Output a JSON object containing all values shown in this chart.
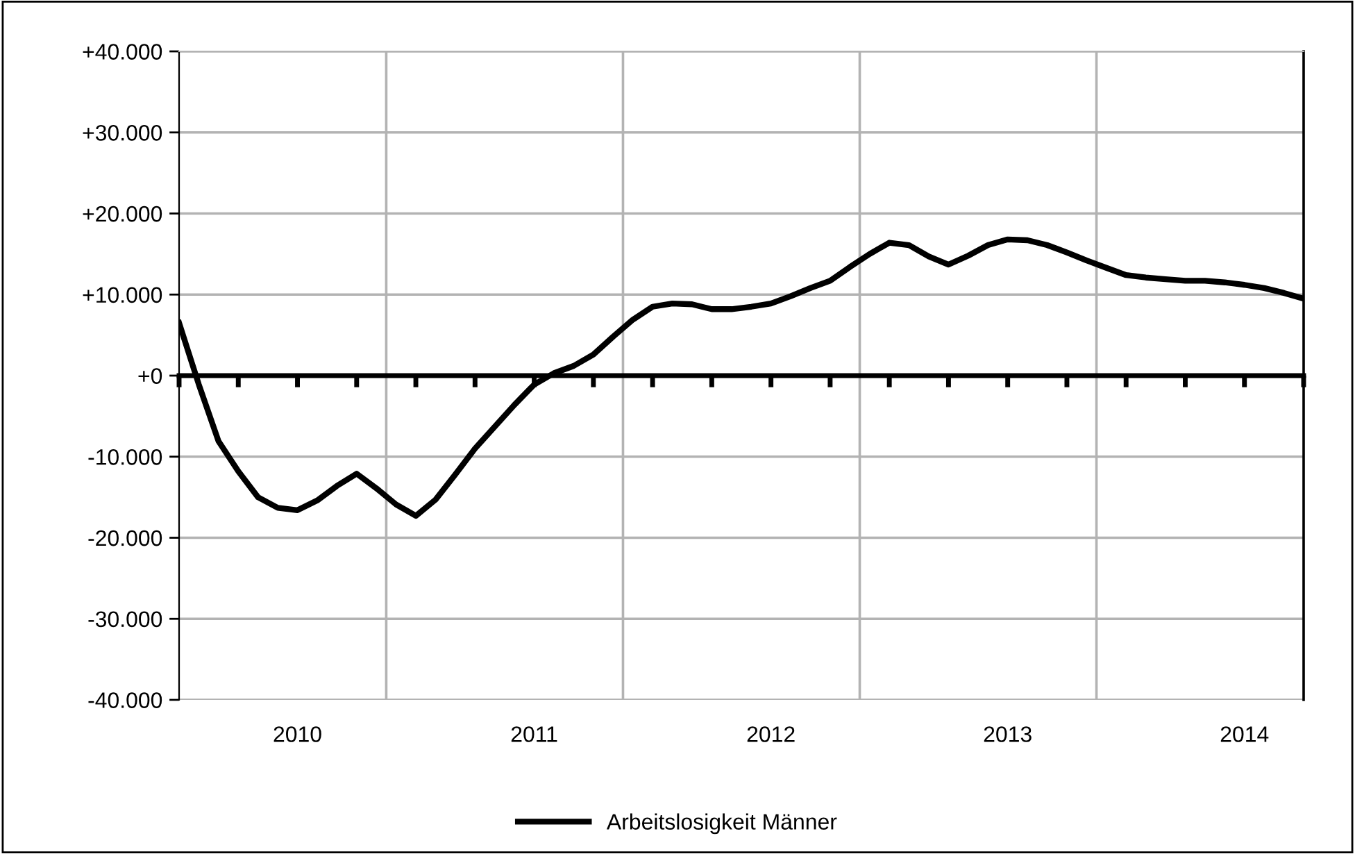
{
  "chart_data": {
    "type": "line",
    "categories": [
      null,
      null,
      null,
      null,
      null,
      null,
      "2010",
      null,
      null,
      null,
      null,
      null,
      null,
      null,
      null,
      null,
      null,
      null,
      "2011",
      null,
      null,
      null,
      null,
      null,
      null,
      null,
      null,
      null,
      null,
      null,
      "2012",
      null,
      null,
      null,
      null,
      null,
      null,
      null,
      null,
      null,
      null,
      null,
      "2013",
      null,
      null,
      null,
      null,
      null,
      null,
      null,
      null,
      null,
      null,
      null,
      "2014",
      null,
      null,
      null
    ],
    "series": [
      {
        "name": "Arbeitslosigkeit Männer",
        "color": "#000000",
        "values": [
          6500,
          -1100,
          -8100,
          -11800,
          -15000,
          -16300,
          -16600,
          -15400,
          -13600,
          -12100,
          -13900,
          -15900,
          -17300,
          -15300,
          -12200,
          -9000,
          -6300,
          -3600,
          -1100,
          300,
          1200,
          2600,
          4800,
          6900,
          8500,
          8900,
          8800,
          8200,
          8200,
          8500,
          8900,
          9800,
          10800,
          11700,
          13400,
          15000,
          16400,
          16100,
          14700,
          13700,
          14800,
          16100,
          16800,
          16700,
          16100,
          15200,
          14200,
          13300,
          12400,
          12100,
          11900,
          11700,
          11700,
          11500,
          11200,
          10800,
          10200,
          9500
        ]
      }
    ],
    "ylim": [
      -40000,
      40000
    ],
    "yticks": [
      {
        "value": -40000,
        "label": "-40.000"
      },
      {
        "value": -30000,
        "label": "-30.000"
      },
      {
        "value": -20000,
        "label": "-20.000"
      },
      {
        "value": -10000,
        "label": "-10.000"
      },
      {
        "value": 0,
        "label": "+0"
      },
      {
        "value": 10000,
        "label": "+10.000"
      },
      {
        "value": 20000,
        "label": "+20.000"
      },
      {
        "value": 30000,
        "label": "+30.000"
      },
      {
        "value": 40000,
        "label": "+40.000"
      }
    ],
    "grid": true,
    "legend": "bottom",
    "marker": "none",
    "line_style": "solid"
  }
}
